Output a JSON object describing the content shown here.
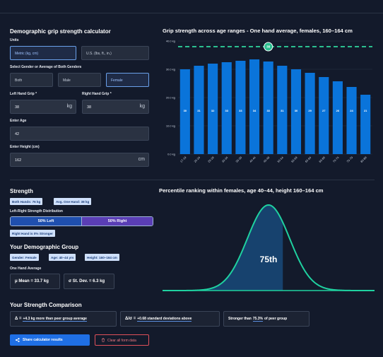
{
  "form": {
    "title": "Demographic grip strength calculator",
    "units_label": "Units",
    "units": [
      "Metric (kg, cm)",
      "U.S. (lbs, ft., in.)"
    ],
    "gender_label": "Select Gender or Average of Both Genders",
    "genders": [
      "Both",
      "Male",
      "Female"
    ],
    "left_label": "Left Hand Grip *",
    "right_label": "Right Hand Grip *",
    "left_value": "38",
    "right_value": "38",
    "grip_unit": "kg",
    "age_label": "Enter Age",
    "age_value": "42",
    "height_label": "Enter Height (cm)",
    "height_value": "162",
    "height_unit": "cm"
  },
  "strength": {
    "title": "Strength",
    "badges": [
      "Both Hands: 76 kg",
      "Avg. One Hand: 38 kg"
    ],
    "distribution_label": "Left-Right Strength Distribution",
    "left": {
      "value": 50,
      "label": "50% Left"
    },
    "right": {
      "value": 50,
      "label": "50% Right"
    },
    "note": "Right Hand is 0% Stronger"
  },
  "group": {
    "title": "Your Demographic Group",
    "badges": [
      "Gender: Female",
      "Age: 40–44 yrs",
      "Height: 160–164 cm"
    ],
    "avg_label": "One Hand Average",
    "stats": [
      "μ Mean = 33.7 kg",
      "σ St. Dev. = 6.3 kg"
    ]
  },
  "comparison": {
    "title": "Your Strength Comparison",
    "items": [
      {
        "prefix": "Δ =",
        "highlight": "+4.3 kg more than peer group average"
      },
      {
        "prefix": "Δ/σ =",
        "highlight": "+0.68 standard deviations above"
      },
      {
        "prefix": "Stronger than",
        "highlight": "75.3%",
        "suffix": "of peer group"
      }
    ]
  },
  "buttons": [
    "Share calculator results",
    "Clear all form data"
  ],
  "chart_data": [
    {
      "type": "bar",
      "title": "Grip strength across age ranges - One hand average, females, 160–164 cm",
      "categories": [
        "17-19",
        "20-24",
        "25-29",
        "30-34",
        "35-39",
        "40-44",
        "45-49",
        "50-54",
        "55-59",
        "60-64",
        "65-69",
        "70-74",
        "75-79",
        "80-89"
      ],
      "values": [
        30,
        31.25,
        32,
        32.5,
        33,
        33.5,
        32.75,
        31.25,
        30,
        28.75,
        27.25,
        25.75,
        23.75,
        21
      ],
      "value_labels": [
        "30",
        "31",
        "32",
        "33",
        "33",
        "34",
        "33",
        "31",
        "30",
        "29",
        "27",
        "26",
        "24",
        "21"
      ],
      "color": "#0a74da",
      "ylim": [
        0,
        40
      ],
      "yticks": [
        {
          "value": 0,
          "label": "0.0 kg"
        },
        {
          "value": 10,
          "label": "10.0 kg"
        },
        {
          "value": 20,
          "label": "20.0 kg"
        },
        {
          "value": 30,
          "label": "30.0 kg"
        },
        {
          "value": 40,
          "label": "40.0 kg"
        }
      ],
      "grid": true,
      "reference_line": {
        "value": 38,
        "color": "#2bbf8f"
      }
    },
    {
      "type": "distribution",
      "title": "Percentile ranking within females, age 40–44, height 160–164 cm",
      "value": 75,
      "value_label": "75th",
      "color": "#1fd1a0",
      "fill": "#17426e"
    }
  ]
}
